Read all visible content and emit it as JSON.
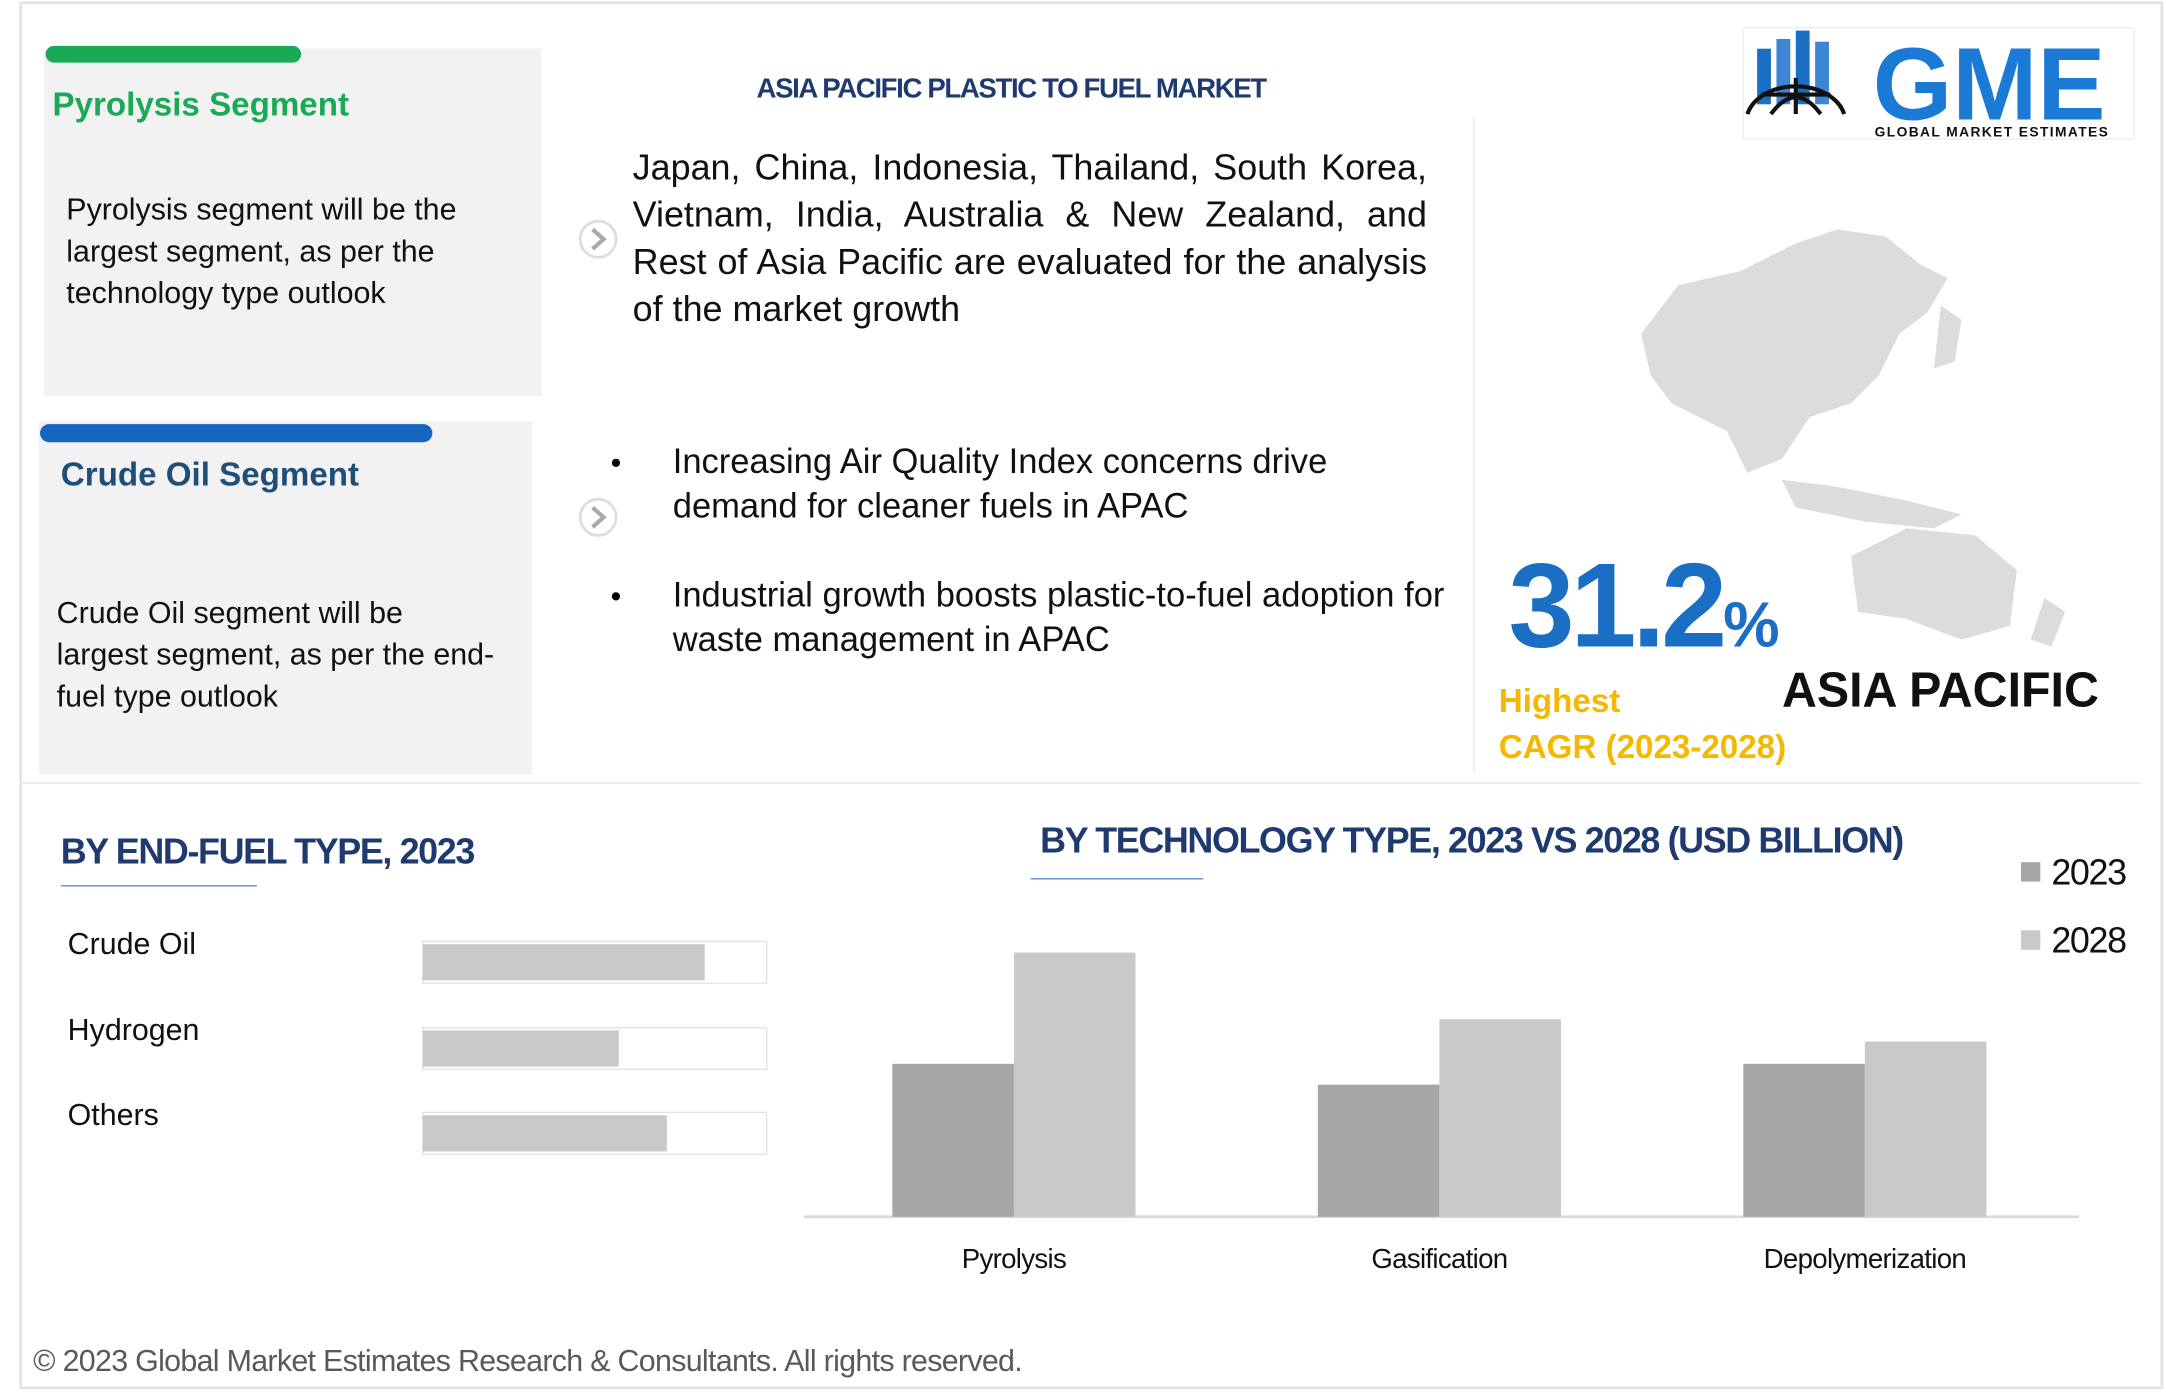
{
  "header": {
    "title": "ASIA PACIFIC PLASTIC TO FUEL MARKET",
    "logo_text": "GME",
    "logo_subtitle": "GLOBAL MARKET ESTIMATES"
  },
  "segments": [
    {
      "title": "Pyrolysis Segment",
      "text": "Pyrolysis segment will be the largest segment, as per the technology type outlook"
    },
    {
      "title": "Crude Oil Segment",
      "text": "Crude Oil segment will be largest segment, as per the end-fuel type outlook"
    }
  ],
  "points": {
    "intro": "Japan, China, Indonesia, Thailand, South Korea, Vietnam, India, Australia & New Zealand, and Rest of Asia Pacific are evaluated for the analysis of the market growth",
    "bullets": [
      "Increasing Air Quality Index concerns drive demand for cleaner fuels in APAC",
      "Industrial growth boosts plastic-to-fuel adoption for waste management in APAC"
    ]
  },
  "highlight": {
    "value": 31.2,
    "unit": "%",
    "label_1": "Highest",
    "label_2": "CAGR (2023-2028)",
    "region": "ASIA PACIFIC"
  },
  "chart_data": [
    {
      "type": "hbar",
      "title": "BY END-FUEL TYPE, 2023",
      "categories": [
        "Crude Oil",
        "Hydrogen",
        "Others"
      ],
      "values": [
        82,
        57,
        71
      ],
      "color": "#c9c9c9",
      "xlim": [
        0,
        100
      ]
    },
    {
      "type": "bar",
      "title": "BY TECHNOLOGY TYPE, 2023 VS 2028 (USD BILLION)",
      "categories": [
        "Pyrolysis",
        "Gasification",
        "Depolymerization"
      ],
      "series": [
        {
          "name": "2023",
          "color": "#a6a6a6",
          "values": [
            110,
            95,
            110
          ]
        },
        {
          "name": "2028",
          "color": "#c9c9c9",
          "values": [
            190,
            142,
            126
          ]
        }
      ],
      "ylim": [
        0,
        200
      ]
    }
  ],
  "footer": "© 2023 Global Market Estimates Research & Consultants. All rights reserved."
}
